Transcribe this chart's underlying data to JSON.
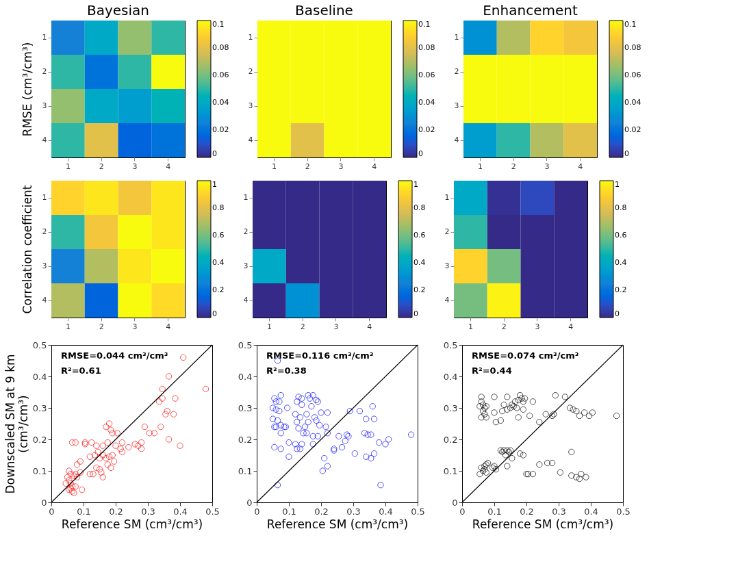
{
  "chart_data": [
    {
      "type": "heatmap",
      "title": "Bayesian",
      "ylabel": "RMSE (cm³/cm³)",
      "categories": [
        "1",
        "2",
        "3",
        "4"
      ],
      "y_categories": [
        "1",
        "2",
        "3",
        "4"
      ],
      "cells": [
        [
          0.025,
          0.04,
          0.065,
          0.05
        ],
        [
          0.05,
          0.02,
          0.05,
          0.1
        ],
        [
          0.065,
          0.04,
          0.035,
          0.045
        ],
        [
          0.05,
          0.08,
          0.015,
          0.02
        ]
      ],
      "clim": [
        0,
        0.1
      ],
      "cticks": [
        0,
        0.02,
        0.04,
        0.06,
        0.08,
        0.1
      ]
    },
    {
      "type": "heatmap",
      "title": "Baseline",
      "categories": [
        "1",
        "2",
        "3",
        "4"
      ],
      "y_categories": [
        "1",
        "2",
        "3",
        "4"
      ],
      "cells": [
        [
          0.1,
          0.1,
          0.1,
          0.1
        ],
        [
          0.1,
          0.1,
          0.1,
          0.1
        ],
        [
          0.1,
          0.1,
          0.1,
          0.1
        ],
        [
          0.1,
          0.08,
          0.1,
          0.1
        ]
      ],
      "clim": [
        0,
        0.1
      ],
      "cticks": [
        0,
        0.02,
        0.04,
        0.06,
        0.08,
        0.1
      ]
    },
    {
      "type": "heatmap",
      "title": "Enhancement",
      "categories": [
        "1",
        "2",
        "3",
        "4"
      ],
      "y_categories": [
        "1",
        "2",
        "3",
        "4"
      ],
      "cells": [
        [
          0.03,
          0.07,
          0.09,
          0.085
        ],
        [
          0.1,
          0.1,
          0.1,
          0.1
        ],
        [
          0.1,
          0.1,
          0.1,
          0.1
        ],
        [
          0.035,
          0.05,
          0.07,
          0.08
        ]
      ],
      "clim": [
        0,
        0.1
      ],
      "cticks": [
        0,
        0.02,
        0.04,
        0.06,
        0.08,
        0.1
      ]
    },
    {
      "type": "heatmap",
      "ylabel": "Correlation coefficient",
      "categories": [
        "1",
        "2",
        "3",
        "4"
      ],
      "y_categories": [
        "1",
        "2",
        "3",
        "4"
      ],
      "cells": [
        [
          0.9,
          0.95,
          0.85,
          0.95
        ],
        [
          0.5,
          0.85,
          1,
          0.95
        ],
        [
          0.25,
          0.7,
          0.95,
          1
        ],
        [
          0.7,
          0.15,
          1,
          0.92
        ]
      ],
      "clim": [
        0,
        1
      ],
      "cticks": [
        0,
        0.2,
        0.4,
        0.6,
        0.8,
        1
      ]
    },
    {
      "type": "heatmap",
      "categories": [
        "1",
        "2",
        "3",
        "4"
      ],
      "y_categories": [
        "1",
        "2",
        "3",
        "4"
      ],
      "cells": [
        [
          0,
          0,
          0,
          0
        ],
        [
          0,
          0,
          0,
          0
        ],
        [
          0.4,
          0,
          0,
          0
        ],
        [
          0,
          0.3,
          0,
          0
        ]
      ],
      "clim": [
        0,
        1
      ],
      "cticks": [
        0,
        0.2,
        0.4,
        0.6,
        0.8,
        1
      ]
    },
    {
      "type": "heatmap",
      "categories": [
        "1",
        "2",
        "3",
        "4"
      ],
      "y_categories": [
        "1",
        "2",
        "3",
        "4"
      ],
      "cells": [
        [
          0.4,
          0.02,
          0.08,
          0
        ],
        [
          0.5,
          0,
          0,
          0
        ],
        [
          0.9,
          0.6,
          0,
          0
        ],
        [
          0.6,
          0.98,
          0,
          0
        ]
      ],
      "clim": [
        0,
        1
      ],
      "cticks": [
        0,
        0.2,
        0.4,
        0.6,
        0.8,
        1
      ]
    },
    {
      "type": "scatter",
      "xlabel": "Reference SM (cm³/cm³)",
      "ylabel": "Downscaled SM at 9 km (cm³/cm³)",
      "xlim": [
        0,
        0.5
      ],
      "ylim": [
        0,
        0.5
      ],
      "xticks": [
        0,
        0.1,
        0.2,
        0.3,
        0.4,
        0.5
      ],
      "yticks": [
        0,
        0.1,
        0.2,
        0.3,
        0.4,
        0.5
      ],
      "grid": false,
      "annotations": [
        "RMSE=0.044 cm³/cm³",
        "R²=0.61"
      ],
      "series": [
        {
          "type": "scatter",
          "marker": "circle",
          "color": "#ff0000",
          "x": [
            0.41,
            0.48,
            0.365,
            0.345,
            0.335,
            0.345,
            0.385,
            0.36,
            0.355,
            0.38,
            0.29,
            0.34,
            0.305,
            0.32,
            0.365,
            0.4,
            0.18,
            0.17,
            0.185,
            0.19,
            0.205,
            0.075,
            0.065,
            0.105,
            0.105,
            0.125,
            0.14,
            0.16,
            0.175,
            0.2,
            0.22,
            0.215,
            0.24,
            0.26,
            0.27,
            0.28,
            0.28,
            0.22,
            0.12,
            0.135,
            0.145,
            0.15,
            0.16,
            0.17,
            0.18,
            0.19,
            0.175,
            0.185,
            0.195,
            0.13,
            0.12,
            0.15,
            0.155,
            0.16,
            0.14,
            0.09,
            0.08,
            0.09,
            0.055,
            0.06,
            0.07,
            0.05,
            0.055,
            0.06,
            0.065,
            0.075,
            0.055,
            0.065,
            0.07,
            0.06,
            0.08,
            0.095,
            0.045,
            0.075
          ],
          "values": [
            0.46,
            0.36,
            0.4,
            0.36,
            0.32,
            0.33,
            0.33,
            0.29,
            0.28,
            0.28,
            0.24,
            0.24,
            0.22,
            0.22,
            0.2,
            0.18,
            0.25,
            0.24,
            0.23,
            0.22,
            0.22,
            0.19,
            0.19,
            0.19,
            0.185,
            0.19,
            0.18,
            0.18,
            0.19,
            0.18,
            0.19,
            0.17,
            0.175,
            0.185,
            0.18,
            0.19,
            0.17,
            0.16,
            0.145,
            0.15,
            0.16,
            0.14,
            0.15,
            0.14,
            0.145,
            0.15,
            0.12,
            0.11,
            0.13,
            0.09,
            0.09,
            0.105,
            0.095,
            0.08,
            0.11,
            0.13,
            0.12,
            0.095,
            0.1,
            0.09,
            0.085,
            0.08,
            0.07,
            0.06,
            0.05,
            0.05,
            0.04,
            0.035,
            0.03,
            0.045,
            0.08,
            0.04,
            0.06,
            0.09
          ]
        },
        {
          "type": "line",
          "marker": "none",
          "color": "#000000",
          "x": [
            0,
            0.5
          ],
          "values": [
            0,
            0.5
          ]
        }
      ]
    },
    {
      "type": "scatter",
      "xlabel": "Reference SM (cm³/cm³)",
      "xlim": [
        0,
        0.5
      ],
      "ylim": [
        0,
        0.5
      ],
      "xticks": [
        0,
        0.1,
        0.2,
        0.3,
        0.4,
        0.5
      ],
      "yticks": [
        0,
        0.1,
        0.2,
        0.3,
        0.4,
        0.5
      ],
      "grid": false,
      "annotations": [
        "RMSE=0.116 cm³/cm³",
        "R²=0.38"
      ],
      "series": [
        {
          "type": "scatter",
          "marker": "circle",
          "color": "#0000ff",
          "x": [
            0.065,
            0.055,
            0.06,
            0.075,
            0.07,
            0.05,
            0.06,
            0.07,
            0.095,
            0.05,
            0.065,
            0.055,
            0.06,
            0.075,
            0.085,
            0.09,
            0.075,
            0.055,
            0.075,
            0.065,
            0.1,
            0.1,
            0.12,
            0.125,
            0.135,
            0.14,
            0.12,
            0.125,
            0.13,
            0.125,
            0.13,
            0.14,
            0.14,
            0.135,
            0.145,
            0.15,
            0.155,
            0.155,
            0.16,
            0.16,
            0.165,
            0.17,
            0.175,
            0.175,
            0.175,
            0.18,
            0.185,
            0.185,
            0.19,
            0.19,
            0.195,
            0.2,
            0.21,
            0.205,
            0.215,
            0.22,
            0.22,
            0.22,
            0.24,
            0.24,
            0.255,
            0.265,
            0.275,
            0.28,
            0.285,
            0.29,
            0.305,
            0.32,
            0.34,
            0.335,
            0.345,
            0.34,
            0.355,
            0.355,
            0.36,
            0.365,
            0.365,
            0.38,
            0.385,
            0.4,
            0.41,
            0.48
          ],
          "values": [
            0.45,
            0.33,
            0.32,
            0.34,
            0.32,
            0.3,
            0.295,
            0.29,
            0.3,
            0.265,
            0.26,
            0.24,
            0.24,
            0.245,
            0.24,
            0.24,
            0.22,
            0.175,
            0.17,
            0.055,
            0.19,
            0.145,
            0.185,
            0.17,
            0.17,
            0.185,
            0.28,
            0.255,
            0.235,
            0.32,
            0.335,
            0.33,
            0.31,
            0.27,
            0.22,
            0.24,
            0.28,
            0.22,
            0.255,
            0.34,
            0.33,
            0.305,
            0.34,
            0.21,
            0.185,
            0.27,
            0.26,
            0.325,
            0.32,
            0.21,
            0.245,
            0.285,
            0.14,
            0.1,
            0.24,
            0.22,
            0.285,
            0.115,
            0.165,
            0.17,
            0.21,
            0.175,
            0.195,
            0.215,
            0.21,
            0.29,
            0.155,
            0.29,
            0.265,
            0.22,
            0.215,
            0.145,
            0.14,
            0.215,
            0.305,
            0.265,
            0.155,
            0.19,
            0.055,
            0.185,
            0.2,
            0.215
          ]
        },
        {
          "type": "line",
          "marker": "none",
          "color": "#000000",
          "x": [
            0,
            0.5
          ],
          "values": [
            0,
            0.5
          ]
        }
      ]
    },
    {
      "type": "scatter",
      "xlabel": "Reference SM (cm³/cm³)",
      "xlim": [
        0,
        0.5
      ],
      "ylim": [
        0,
        0.5
      ],
      "xticks": [
        0,
        0.1,
        0.2,
        0.3,
        0.4,
        0.5
      ],
      "yticks": [
        0,
        0.1,
        0.2,
        0.3,
        0.4,
        0.5
      ],
      "grid": false,
      "annotations": [
        "RMSE=0.074 cm³/cm³",
        "R²=0.44"
      ],
      "series": [
        {
          "type": "scatter",
          "marker": "circle",
          "color": "#000000",
          "x": [
            0.06,
            0.055,
            0.06,
            0.065,
            0.07,
            0.065,
            0.07,
            0.06,
            0.075,
            0.075,
            0.1,
            0.1,
            0.105,
            0.12,
            0.125,
            0.13,
            0.14,
            0.14,
            0.15,
            0.155,
            0.16,
            0.165,
            0.17,
            0.175,
            0.175,
            0.18,
            0.185,
            0.19,
            0.195,
            0.19,
            0.21,
            0.22,
            0.24,
            0.26,
            0.28,
            0.285,
            0.29,
            0.32,
            0.335,
            0.345,
            0.355,
            0.365,
            0.38,
            0.395,
            0.405,
            0.48,
            0.055,
            0.06,
            0.065,
            0.07,
            0.075,
            0.08,
            0.07,
            0.075,
            0.095,
            0.1,
            0.105,
            0.12,
            0.125,
            0.13,
            0.135,
            0.14,
            0.145,
            0.15,
            0.155,
            0.14,
            0.18,
            0.19,
            0.2,
            0.205,
            0.22,
            0.24,
            0.265,
            0.28,
            0.305,
            0.34,
            0.34,
            0.355,
            0.365,
            0.37,
            0.385
          ],
          "values": [
            0.335,
            0.305,
            0.32,
            0.31,
            0.3,
            0.29,
            0.28,
            0.27,
            0.27,
            0.305,
            0.335,
            0.285,
            0.255,
            0.26,
            0.29,
            0.31,
            0.335,
            0.295,
            0.3,
            0.31,
            0.305,
            0.32,
            0.3,
            0.325,
            0.27,
            0.34,
            0.33,
            0.32,
            0.33,
            0.295,
            0.275,
            0.32,
            0.255,
            0.28,
            0.275,
            0.28,
            0.34,
            0.335,
            0.3,
            0.295,
            0.29,
            0.275,
            0.285,
            0.275,
            0.285,
            0.275,
            0.09,
            0.11,
            0.1,
            0.115,
            0.12,
            0.125,
            0.105,
            0.095,
            0.11,
            0.115,
            0.105,
            0.165,
            0.16,
            0.165,
            0.15,
            0.165,
            0.16,
            0.165,
            0.14,
            0.115,
            0.155,
            0.15,
            0.09,
            0.09,
            0.09,
            0.12,
            0.125,
            0.125,
            0.095,
            0.16,
            0.085,
            0.08,
            0.075,
            0.09,
            0.08
          ]
        },
        {
          "type": "line",
          "marker": "none",
          "color": "#000000",
          "x": [
            0,
            0.5
          ],
          "values": [
            0,
            0.5
          ]
        }
      ]
    }
  ]
}
